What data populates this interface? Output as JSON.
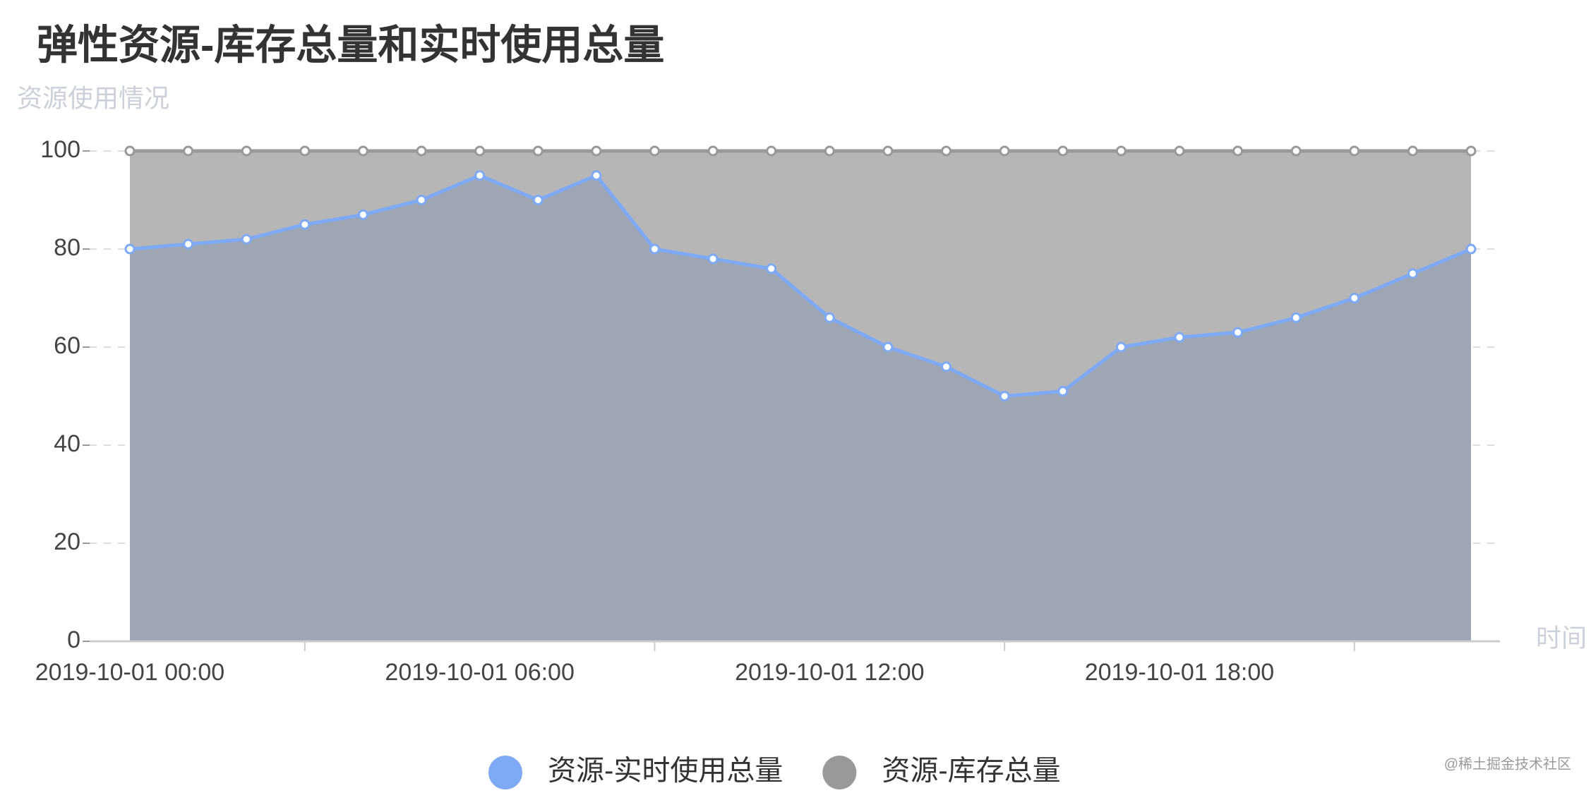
{
  "chart_data": {
    "type": "area",
    "title": "弹性资源-库存总量和实时使用总量",
    "y_label": "资源使用情况",
    "x_label": "时间",
    "watermark": "@稀土掘金技术社区",
    "categories": [
      "2019-10-01 00:00",
      null,
      null,
      null,
      null,
      null,
      "2019-10-01 06:00",
      null,
      null,
      null,
      null,
      null,
      "2019-10-01 12:00",
      null,
      null,
      null,
      null,
      null,
      "2019-10-01 18:00",
      null,
      null,
      null,
      null,
      null
    ],
    "series": [
      {
        "name": "资源-实时使用总量",
        "color": "#7eaaf5",
        "fill": "#9ea5b3",
        "values": [
          80,
          81,
          82,
          85,
          87,
          90,
          95,
          90,
          95,
          80,
          78,
          76,
          66,
          60,
          56,
          50,
          51,
          60,
          62,
          63,
          66,
          70,
          75,
          80
        ]
      },
      {
        "name": "资源-库存总量",
        "color": "#999999",
        "fill": "#b6b6b6",
        "values": [
          100,
          100,
          100,
          100,
          100,
          100,
          100,
          100,
          100,
          100,
          100,
          100,
          100,
          100,
          100,
          100,
          100,
          100,
          100,
          100,
          100,
          100,
          100,
          100
        ]
      }
    ],
    "ylim": [
      0,
      100
    ],
    "yticks": [
      0,
      20,
      40,
      60,
      80,
      100
    ],
    "grid": true
  }
}
